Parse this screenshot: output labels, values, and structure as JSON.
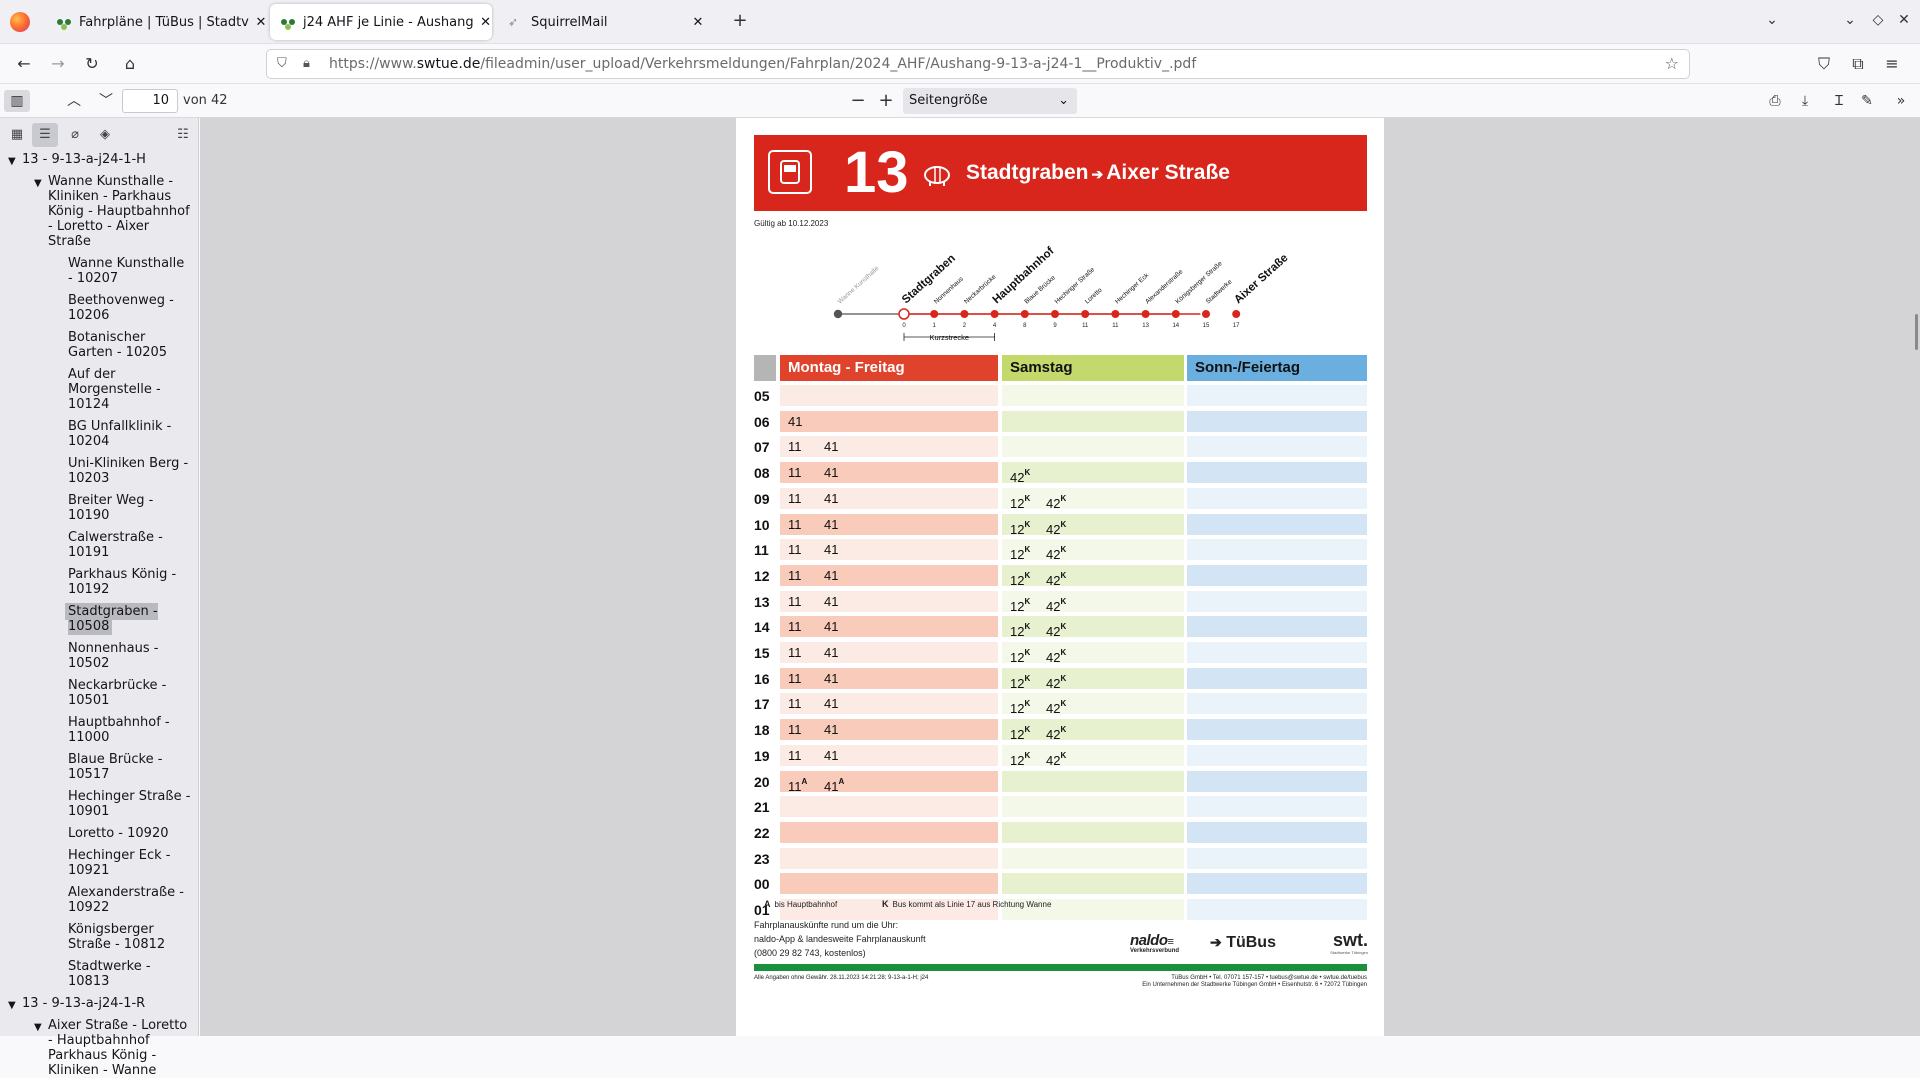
{
  "browser": {
    "tabs": [
      {
        "title": "Fahrpläne | TüBus | Stadtv",
        "active": false
      },
      {
        "title": "j24 AHF je Linie - Aushang",
        "active": true
      },
      {
        "title": "SquirrelMail",
        "active": false
      }
    ],
    "url_prefix": "https://www.",
    "url_domain": "swtue.de",
    "url_path": "/fileadmin/user_upload/Verkehrsmeldungen/Fahrplan/2024_AHF/Aushang-9-13-a-j24-1__Produktiv_.pdf"
  },
  "pdf_toolbar": {
    "page_number": "10",
    "page_total": "von 42",
    "zoom": "Seitengröße"
  },
  "outline": {
    "items": [
      {
        "label": "13 - 9-13-a-j24-1-H",
        "level": 0,
        "toggle": true
      },
      {
        "label": "Wanne Kunsthalle - Kliniken - Parkhaus König - Hauptbahnhof - Loretto - Aixer Straße",
        "level": 1,
        "toggle": true
      },
      {
        "label": "Wanne Kunsthalle - 10207",
        "level": 2
      },
      {
        "label": "Beethovenweg - 10206",
        "level": 2
      },
      {
        "label": "Botanischer Garten - 10205",
        "level": 2
      },
      {
        "label": "Auf der Morgenstelle - 10124",
        "level": 2
      },
      {
        "label": "BG Unfallklinik - 10204",
        "level": 2
      },
      {
        "label": "Uni-Kliniken Berg - 10203",
        "level": 2
      },
      {
        "label": "Breiter Weg - 10190",
        "level": 2
      },
      {
        "label": "Calwerstraße - 10191",
        "level": 2
      },
      {
        "label": "Parkhaus König - 10192",
        "level": 2
      },
      {
        "label": "Stadtgraben - 10508",
        "level": 2,
        "selected": true
      },
      {
        "label": "Nonnenhaus - 10502",
        "level": 2
      },
      {
        "label": "Neckarbrücke - 10501",
        "level": 2
      },
      {
        "label": "Hauptbahnhof - 11000",
        "level": 2
      },
      {
        "label": "Blaue Brücke - 10517",
        "level": 2
      },
      {
        "label": "Hechinger Straße - 10901",
        "level": 2
      },
      {
        "label": "Loretto - 10920",
        "level": 2
      },
      {
        "label": "Hechinger Eck - 10921",
        "level": 2
      },
      {
        "label": "Alexanderstraße - 10922",
        "level": 2
      },
      {
        "label": "Königsberger Straße - 10812",
        "level": 2
      },
      {
        "label": "Stadtwerke - 10813",
        "level": 2
      },
      {
        "label": "13 - 9-13-a-j24-1-R",
        "level": 0,
        "toggle": true
      },
      {
        "label": "Aixer Straße - Loretto - Hauptbahnhof Parkhaus König - Kliniken - Wanne",
        "level": 1,
        "toggle": true
      }
    ]
  },
  "doc": {
    "line": "13",
    "route": "Stadtgraben",
    "route_arrow": "➔",
    "route_to": "Aixer Straße",
    "valid": "Gültig ab 10.12.2023",
    "stops": [
      {
        "name": "Wanne Kunsthalle",
        "min": "",
        "style": "past"
      },
      {
        "name": "Stadtgraben",
        "min": "0",
        "style": "current"
      },
      {
        "name": "Nonnenhaus",
        "min": "1",
        "style": "normal"
      },
      {
        "name": "Neckarbrücke",
        "min": "2",
        "style": "normal"
      },
      {
        "name": "Hauptbahnhof",
        "min": "4",
        "style": "major"
      },
      {
        "name": "Blaue Brücke",
        "min": "8",
        "style": "normal"
      },
      {
        "name": "Hechinger Straße",
        "min": "9",
        "style": "normal"
      },
      {
        "name": "Loretto",
        "min": "11",
        "style": "normal"
      },
      {
        "name": "Hechinger Eck",
        "min": "11",
        "style": "normal"
      },
      {
        "name": "Alexanderstraße",
        "min": "13",
        "style": "normal"
      },
      {
        "name": "Königsberger Straße",
        "min": "14",
        "style": "normal"
      },
      {
        "name": "Stadtwerke",
        "min": "15",
        "style": "normal"
      },
      {
        "name": "Aixer Straße",
        "min": "17",
        "style": "major"
      }
    ],
    "kurzstrecke": "Kurzstrecke",
    "columns": [
      {
        "label": "Montag - Freitag",
        "head": "#e0432c",
        "text": "#ffffff",
        "dark": "#f8cbbb",
        "light": "#fcebe4"
      },
      {
        "label": "Samstag",
        "head": "#c3d96b",
        "text": "#111111",
        "dark": "#e7f0cf",
        "light": "#f4f8e8"
      },
      {
        "label": "Sonn-/Feiertag",
        "head": "#6aafdf",
        "text": "#111111",
        "dark": "#d3e5f4",
        "light": "#eaf2fa"
      }
    ],
    "timetable": [
      {
        "hour": "05",
        "mf": [],
        "sa": [],
        "so": []
      },
      {
        "hour": "06",
        "mf": [
          {
            "m": "41"
          }
        ],
        "sa": [],
        "so": []
      },
      {
        "hour": "07",
        "mf": [
          {
            "m": "11"
          },
          {
            "m": "41"
          }
        ],
        "sa": [],
        "so": []
      },
      {
        "hour": "08",
        "mf": [
          {
            "m": "11"
          },
          {
            "m": "41"
          }
        ],
        "sa": [
          {
            "m": "42",
            "n": "K"
          }
        ],
        "so": []
      },
      {
        "hour": "09",
        "mf": [
          {
            "m": "11"
          },
          {
            "m": "41"
          }
        ],
        "sa": [
          {
            "m": "12",
            "n": "K"
          },
          {
            "m": "42",
            "n": "K"
          }
        ],
        "so": []
      },
      {
        "hour": "10",
        "mf": [
          {
            "m": "11"
          },
          {
            "m": "41"
          }
        ],
        "sa": [
          {
            "m": "12",
            "n": "K"
          },
          {
            "m": "42",
            "n": "K"
          }
        ],
        "so": []
      },
      {
        "hour": "11",
        "mf": [
          {
            "m": "11"
          },
          {
            "m": "41"
          }
        ],
        "sa": [
          {
            "m": "12",
            "n": "K"
          },
          {
            "m": "42",
            "n": "K"
          }
        ],
        "so": []
      },
      {
        "hour": "12",
        "mf": [
          {
            "m": "11"
          },
          {
            "m": "41"
          }
        ],
        "sa": [
          {
            "m": "12",
            "n": "K"
          },
          {
            "m": "42",
            "n": "K"
          }
        ],
        "so": []
      },
      {
        "hour": "13",
        "mf": [
          {
            "m": "11"
          },
          {
            "m": "41"
          }
        ],
        "sa": [
          {
            "m": "12",
            "n": "K"
          },
          {
            "m": "42",
            "n": "K"
          }
        ],
        "so": []
      },
      {
        "hour": "14",
        "mf": [
          {
            "m": "11"
          },
          {
            "m": "41"
          }
        ],
        "sa": [
          {
            "m": "12",
            "n": "K"
          },
          {
            "m": "42",
            "n": "K"
          }
        ],
        "so": []
      },
      {
        "hour": "15",
        "mf": [
          {
            "m": "11"
          },
          {
            "m": "41"
          }
        ],
        "sa": [
          {
            "m": "12",
            "n": "K"
          },
          {
            "m": "42",
            "n": "K"
          }
        ],
        "so": []
      },
      {
        "hour": "16",
        "mf": [
          {
            "m": "11"
          },
          {
            "m": "41"
          }
        ],
        "sa": [
          {
            "m": "12",
            "n": "K"
          },
          {
            "m": "42",
            "n": "K"
          }
        ],
        "so": []
      },
      {
        "hour": "17",
        "mf": [
          {
            "m": "11"
          },
          {
            "m": "41"
          }
        ],
        "sa": [
          {
            "m": "12",
            "n": "K"
          },
          {
            "m": "42",
            "n": "K"
          }
        ],
        "so": []
      },
      {
        "hour": "18",
        "mf": [
          {
            "m": "11"
          },
          {
            "m": "41"
          }
        ],
        "sa": [
          {
            "m": "12",
            "n": "K"
          },
          {
            "m": "42",
            "n": "K"
          }
        ],
        "so": []
      },
      {
        "hour": "19",
        "mf": [
          {
            "m": "11"
          },
          {
            "m": "41"
          }
        ],
        "sa": [
          {
            "m": "12",
            "n": "K"
          },
          {
            "m": "42",
            "n": "K"
          }
        ],
        "so": []
      },
      {
        "hour": "20",
        "mf": [
          {
            "m": "11",
            "n": "A"
          },
          {
            "m": "41",
            "n": "A"
          }
        ],
        "sa": [],
        "so": []
      },
      {
        "hour": "21",
        "mf": [],
        "sa": [],
        "so": []
      },
      {
        "hour": "22",
        "mf": [],
        "sa": [],
        "so": []
      },
      {
        "hour": "23",
        "mf": [],
        "sa": [],
        "so": []
      },
      {
        "hour": "00",
        "mf": [],
        "sa": [],
        "so": []
      },
      {
        "hour": "01",
        "mf": [],
        "sa": [],
        "so": []
      }
    ],
    "notes": [
      {
        "key": "A",
        "text": "bis Hauptbahnhof"
      },
      {
        "key": "K",
        "text": "Bus kommt als Linie 17 aus Richtung Wanne"
      }
    ],
    "info_lines": [
      "Fahrplanauskünfte rund um die Uhr:",
      "naldo-App & landesweite Fahrplanauskunft",
      "(0800 29 82 743, kostenlos)"
    ],
    "logo_naldo": "naldo",
    "logo_naldo_sub": "Verkehrsverbund",
    "logo_tuebus": "TüBus",
    "logo_swt": "swt.",
    "logo_swt_sub": "Stadtwerke Tübingen",
    "footer_left": "Alle Angaben ohne Gewähr. 28.11.2023 14:21:28; 9-13-a-1-H; j24",
    "footer_right1": "TüBus GmbH • Tel. 07071 157-157 • tuebus@swtue.de • swtue.de/tuebus",
    "footer_right2": "Ein Unternehmen der Stadtwerke Tübingen GmbH • Eisenhutstr. 6 • 72072 Tübingen",
    "brand_green": "#1a8f3c",
    "brand_red": "#d9261c"
  }
}
